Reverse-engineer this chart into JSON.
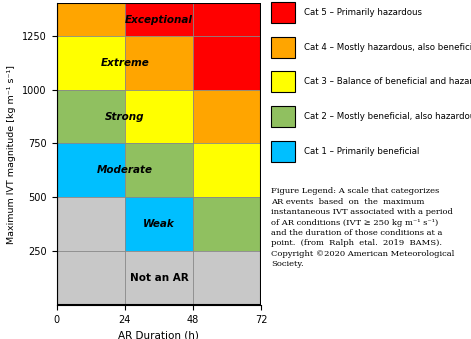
{
  "xlabel": "AR Duration (h)",
  "ylabel": "Maximum IVT magnitude [kg m⁻¹ s⁻¹]",
  "xlim": [
    0,
    72
  ],
  "ylim": [
    0,
    1400
  ],
  "xticks": [
    0,
    24,
    48,
    72
  ],
  "yticks": [
    250,
    500,
    750,
    1000,
    1250
  ],
  "legend_items": [
    {
      "label": "Cat 5 – Primarily hazardous",
      "color": "#FF0000"
    },
    {
      "label": "Cat 4 – Mostly hazardous, also beneficial",
      "color": "#FFA500"
    },
    {
      "label": "Cat 3 – Balance of beneficial and hazardous",
      "color": "#FFFF00"
    },
    {
      "label": "Cat 2 – Mostly beneficial, also hazardous",
      "color": "#90C060"
    },
    {
      "label": "Cat 1 – Primarily beneficial",
      "color": "#00BFFF"
    }
  ],
  "caption": "Figure Legend: A scale that categorizes\nAR events  based  on  the  maximum\ninstantaneous IVT associated with a period\nof AR conditions (IVT ≥ 250 kg m⁻¹ s⁻¹)\nand the duration of those conditions at a\npoint.  (from  Ralph  etal.  2019  BAMS).\nCopyright ©2020 American Meteorological\nSociety.",
  "cell_colors": [
    [
      0,
      24,
      0,
      250,
      "#C8C8C8"
    ],
    [
      24,
      48,
      0,
      250,
      "#C8C8C8"
    ],
    [
      48,
      72,
      0,
      250,
      "#C8C8C8"
    ],
    [
      0,
      24,
      250,
      500,
      "#C8C8C8"
    ],
    [
      24,
      48,
      250,
      500,
      "#00BFFF"
    ],
    [
      48,
      72,
      250,
      500,
      "#90C060"
    ],
    [
      0,
      24,
      500,
      750,
      "#00BFFF"
    ],
    [
      24,
      48,
      500,
      750,
      "#90C060"
    ],
    [
      48,
      72,
      500,
      750,
      "#FFFF00"
    ],
    [
      0,
      24,
      750,
      1000,
      "#90C060"
    ],
    [
      24,
      48,
      750,
      1000,
      "#FFFF00"
    ],
    [
      48,
      72,
      750,
      1000,
      "#FFA500"
    ],
    [
      0,
      24,
      1000,
      1250,
      "#FFFF00"
    ],
    [
      24,
      48,
      1000,
      1250,
      "#FFA500"
    ],
    [
      48,
      72,
      1000,
      1250,
      "#FF0000"
    ],
    [
      0,
      24,
      1250,
      1400,
      "#FFA500"
    ],
    [
      24,
      72,
      1250,
      1400,
      "#FF0000"
    ]
  ],
  "cat_labels": [
    [
      36,
      125,
      "Not an AR"
    ],
    [
      36,
      375,
      "Weak"
    ],
    [
      24,
      625,
      "Moderate"
    ],
    [
      24,
      875,
      "Strong"
    ],
    [
      24,
      1125,
      "Extreme"
    ],
    [
      36,
      1325,
      "Exceptional"
    ]
  ]
}
